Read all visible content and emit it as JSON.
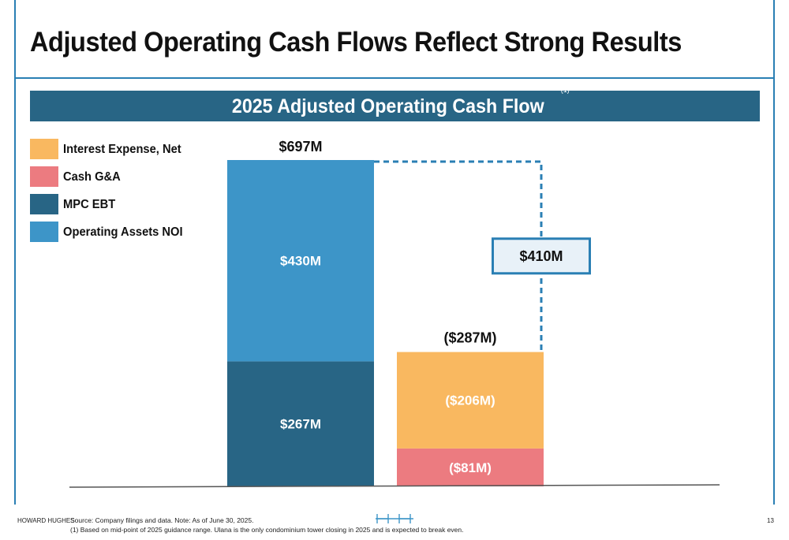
{
  "page": {
    "title": "Adjusted Operating Cash Flows Reflect Strong Results",
    "page_number": "13"
  },
  "banner": {
    "title": "2025 Adjusted Operating Cash Flow",
    "note": "(1)"
  },
  "legend": [
    {
      "label": "Interest Expense, Net",
      "color": "#f9b860"
    },
    {
      "label": "Cash G&A",
      "color": "#ec7b80"
    },
    {
      "label": "MPC EBT",
      "color": "#286585"
    },
    {
      "label": "Operating Assets NOI",
      "color": "#3d95c8"
    }
  ],
  "chart_data": {
    "type": "bar",
    "subtype": "stacked waterfall",
    "title": "2025 Adjusted Operating Cash Flow",
    "unit": "$M",
    "grid": false,
    "legend_position": "top-left",
    "bars": [
      {
        "total": 697,
        "total_label": "$697M",
        "segments": [
          {
            "series": "MPC EBT",
            "value": 267,
            "label": "$267M",
            "color": "#286585"
          },
          {
            "series": "Operating Assets NOI",
            "value": 430,
            "label": "$430M",
            "color": "#3d95c8"
          }
        ]
      },
      {
        "total": -287,
        "total_label": "($287M)",
        "segments": [
          {
            "series": "Cash G&A",
            "value": -81,
            "label": "($81M)",
            "color": "#ec7b80"
          },
          {
            "series": "Interest Expense, Net",
            "value": -206,
            "label": "($206M)",
            "color": "#f9b860"
          }
        ]
      }
    ],
    "net": {
      "value": 410,
      "label": "$410M"
    },
    "colors": {
      "connector": "#2a7fb4",
      "net_box_fill": "#e8f1f8",
      "baseline": "#555555"
    }
  },
  "footer": {
    "brand": "HOWARD HUGHES",
    "source_line1": "Source: Company filings and data. Note: As of June 30, 2025.",
    "source_line2": "(1) Based on mid-point of 2025 guidance range. Ulana is the only condominium tower closing in 2025 and is expected to break even."
  }
}
